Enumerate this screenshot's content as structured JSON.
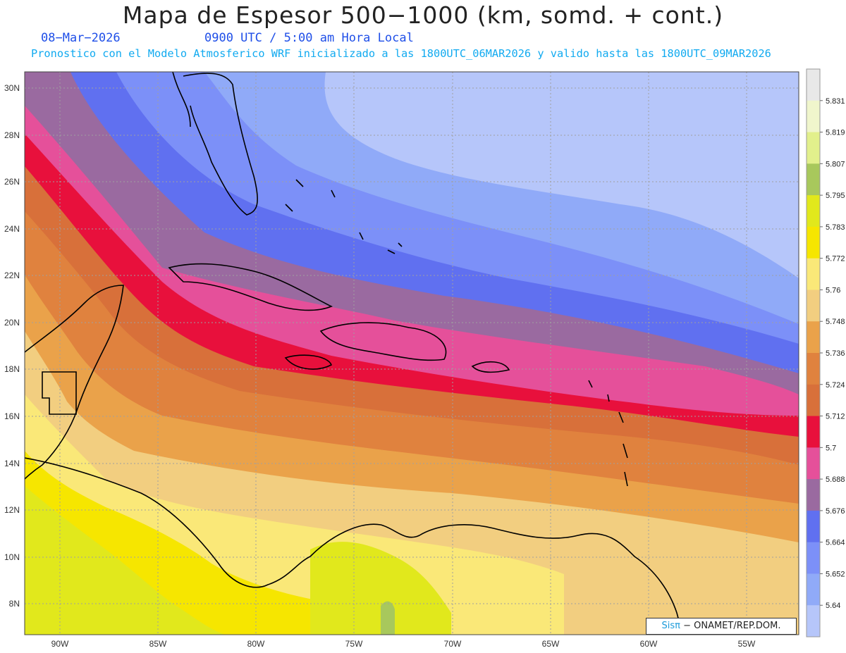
{
  "header": {
    "title": "Mapa de Espesor 500−1000 (km, somd. + cont.)",
    "date": "08−Mar−2026",
    "time": "0900 UTC / 5:00 am Hora Local",
    "subtitle": "Pronostico con el Modelo Atmosferico WRF inicializado a las 1800UTC_06MAR2026 y valido hasta las  1800UTC_09MAR2026"
  },
  "map": {
    "lat_labels": [
      "30N",
      "28N",
      "26N",
      "24N",
      "22N",
      "20N",
      "18N",
      "16N",
      "14N",
      "12N",
      "10N",
      "8N"
    ],
    "lon_labels": [
      "90W",
      "85W",
      "80W",
      "75W",
      "70W",
      "65W",
      "60W",
      "55W"
    ]
  },
  "legend": {
    "levels": [
      "5.831",
      "5.819",
      "5.807",
      "5.795",
      "5.783",
      "5.772",
      "5.76",
      "5.748",
      "5.736",
      "5.724",
      "5.712",
      "5.7",
      "5.688",
      "5.676",
      "5.664",
      "5.652",
      "5.64"
    ],
    "colors": [
      "#e8e8e8",
      "#f0f6cc",
      "#e2f08c",
      "#a8c85c",
      "#e1e81c",
      "#f6e600",
      "#fae878",
      "#f2ce80",
      "#eaa24a",
      "#e0823e",
      "#d8703a",
      "#e8103c",
      "#e5509a",
      "#9a6aa0",
      "#6070f0",
      "#7c90f8",
      "#90aaf8",
      "#b6c6fa"
    ]
  },
  "credit": {
    "brand": "Sisπ",
    "text": "− ONAMET/REP.DOM."
  }
}
